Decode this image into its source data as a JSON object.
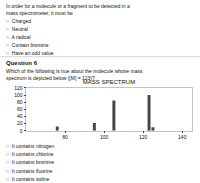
{
  "chart_data": {
    "type": "bar",
    "title": "MASS SPECTRUM",
    "x": [
      76,
      95,
      105,
      123,
      125
    ],
    "values": [
      12,
      22,
      85,
      100,
      10
    ],
    "color": "#444444",
    "xlim": [
      60,
      145
    ],
    "xticks": [
      80,
      100,
      120,
      140
    ],
    "ylim": [
      0,
      120
    ],
    "yticks": [
      0,
      20,
      40,
      60,
      80,
      100,
      120
    ],
    "grid": false,
    "annotations": [
      "In order for a molecule or a fragment to be detected in a mass spectrometer, it must be",
      "○  Charged",
      "○  Neutral",
      "○  A radical",
      "○  Contain bromine",
      "○  Have an odd value",
      "Question 6",
      "Which of the following is true about the molecule whose mass spectrum is depicted below ([M] = 123)?",
      "○  It contains nitrogen",
      "○  It contains chlorine",
      "○  It contains bromine",
      "○  It contains fluorine",
      "○  It contains iodine"
    ]
  }
}
